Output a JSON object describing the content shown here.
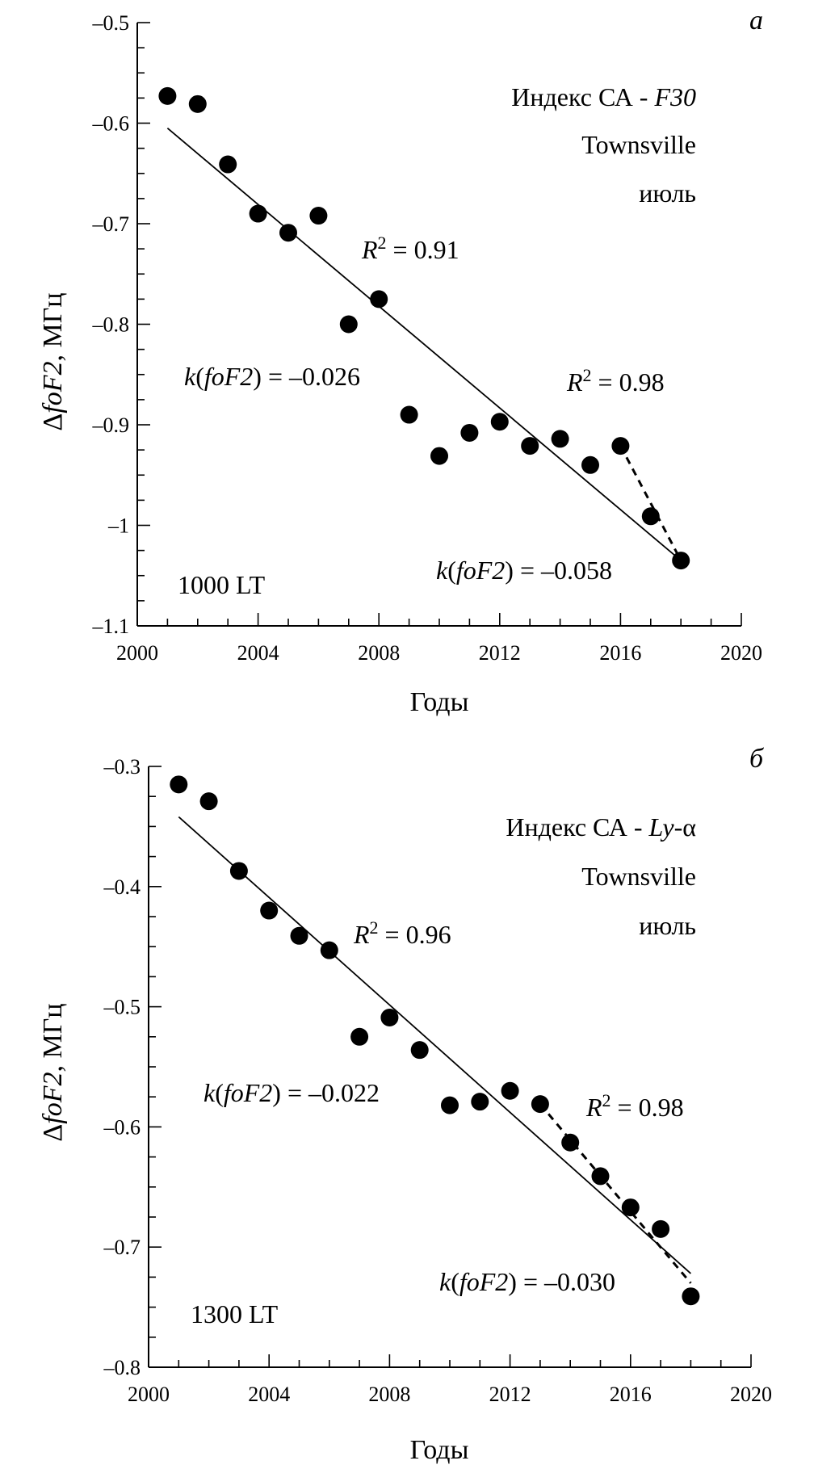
{
  "chart_data": [
    {
      "type": "scatter",
      "panel_label": "а",
      "title_lines": [
        "Индекс СА - ",
        "F30",
        "Townsville",
        "июль"
      ],
      "xlabel": "Годы",
      "ylabel_parts": [
        "Δ",
        "foF2",
        ", МГц"
      ],
      "xlim": [
        2000,
        2020
      ],
      "ylim": [
        -1.1,
        -0.5
      ],
      "xticks": [
        2000,
        2004,
        2008,
        2012,
        2016,
        2020
      ],
      "xtick_labels": [
        "2000",
        "2004",
        "2008",
        "2012",
        "2016",
        "2020"
      ],
      "yticks": [
        -1.1,
        -1.0,
        -0.9,
        -0.8,
        -0.7,
        -0.6,
        -0.5
      ],
      "ytick_labels": [
        "–1.1",
        "–1",
        "–0.9",
        "–0.8",
        "–0.7",
        "–0.6",
        "–0.5"
      ],
      "x": [
        2001,
        2002,
        2003,
        2004,
        2005,
        2006,
        2007,
        2008,
        2009,
        2010,
        2011,
        2012,
        2013,
        2014,
        2015,
        2016,
        2017,
        2018
      ],
      "y": [
        -0.573,
        -0.581,
        -0.641,
        -0.69,
        -0.709,
        -0.692,
        -0.8,
        -0.775,
        -0.89,
        -0.931,
        -0.908,
        -0.897,
        -0.921,
        -0.914,
        -0.94,
        -0.921,
        -0.991,
        -1.035
      ],
      "trend_full": {
        "x": [
          2001,
          2018
        ],
        "y": [
          -0.605,
          -1.035
        ]
      },
      "trend_recent": {
        "x": [
          2016,
          2018
        ],
        "y": [
          -0.921,
          -1.035
        ]
      },
      "annotations": {
        "r2_full": [
          "R",
          "2",
          " = 0.91"
        ],
        "k_full": [
          "k",
          "(",
          "foF2",
          ") = –0.026"
        ],
        "r2_recent": [
          "R",
          "2",
          " = 0.98"
        ],
        "k_recent": [
          "k",
          "(",
          "foF2",
          ") = –0.058"
        ],
        "lt": "1000 LT"
      }
    },
    {
      "type": "scatter",
      "panel_label": "б",
      "title_lines": [
        "Индекс СА - ",
        "Ly",
        "-α",
        "Townsville",
        "июль"
      ],
      "xlabel": "Годы",
      "ylabel_parts": [
        "Δ",
        "foF2",
        ", МГц"
      ],
      "xlim": [
        2000,
        2020
      ],
      "ylim": [
        -0.8,
        -0.3
      ],
      "xticks": [
        2000,
        2004,
        2008,
        2012,
        2016,
        2020
      ],
      "xtick_labels": [
        "2000",
        "2004",
        "2008",
        "2012",
        "2016",
        "2020"
      ],
      "yticks": [
        -0.8,
        -0.7,
        -0.6,
        -0.5,
        -0.4,
        -0.3
      ],
      "ytick_labels": [
        "–0.8",
        "–0.7",
        "–0.6",
        "–0.5",
        "–0.4",
        "–0.3"
      ],
      "x": [
        2001,
        2002,
        2003,
        2004,
        2005,
        2006,
        2007,
        2008,
        2009,
        2010,
        2011,
        2012,
        2013,
        2014,
        2015,
        2016,
        2017,
        2018
      ],
      "y": [
        -0.315,
        -0.329,
        -0.387,
        -0.42,
        -0.441,
        -0.453,
        -0.525,
        -0.509,
        -0.536,
        -0.582,
        -0.579,
        -0.57,
        -0.581,
        -0.613,
        -0.641,
        -0.667,
        -0.685,
        -0.741
      ],
      "trend_full": {
        "x": [
          2001,
          2018
        ],
        "y": [
          -0.342,
          -0.722
        ]
      },
      "trend_recent": {
        "x": [
          2013,
          2018
        ],
        "y": [
          -0.581,
          -0.73
        ]
      },
      "annotations": {
        "r2_full": [
          "R",
          "2",
          " = 0.96"
        ],
        "k_full": [
          "k",
          "(",
          "foF2",
          ") = –0.022"
        ],
        "r2_recent": [
          "R",
          "2",
          " = 0.98"
        ],
        "k_recent": [
          "k",
          "(",
          "foF2",
          ") = –0.030"
        ],
        "lt": "1300 LT"
      }
    }
  ]
}
